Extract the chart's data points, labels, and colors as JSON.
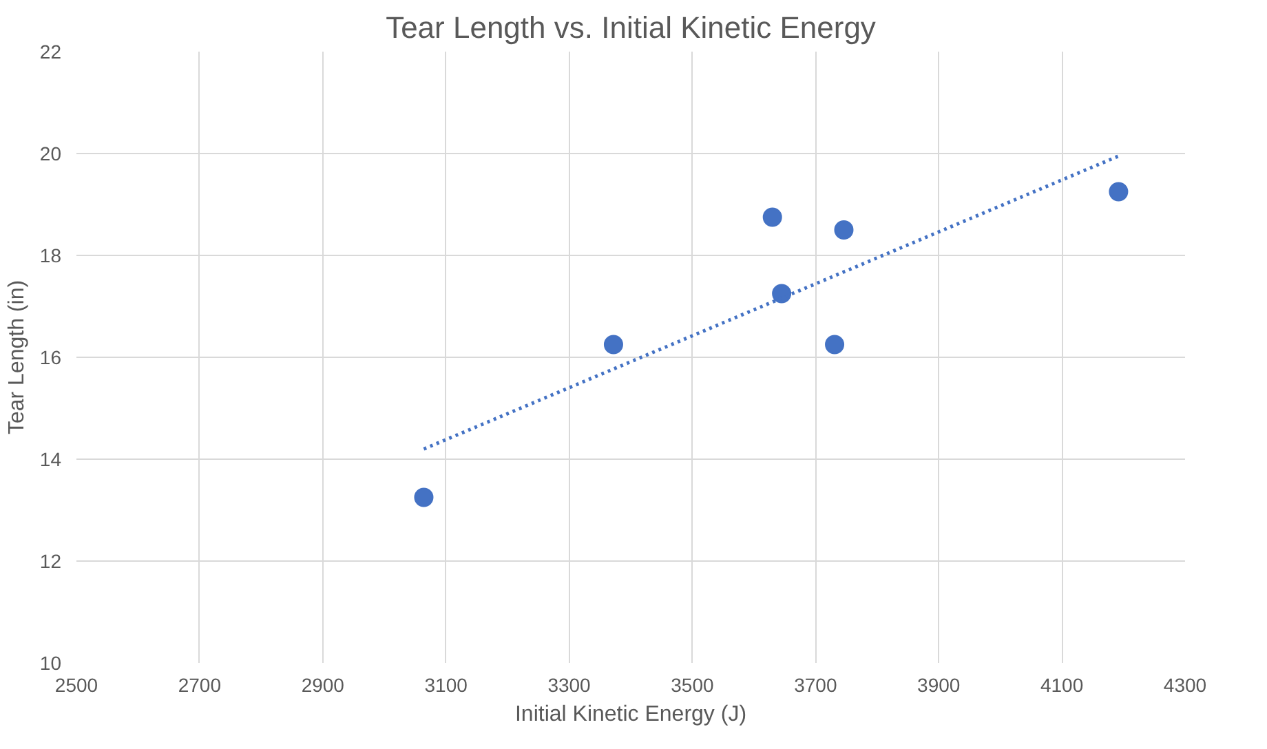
{
  "chart_data": {
    "type": "scatter",
    "title": "Tear Length vs. Initial Kinetic Energy",
    "xlabel": "Initial Kinetic Energy (J)",
    "ylabel": "Tear Length (in)",
    "series": [
      {
        "color": "#4472c4",
        "x": [
          3064,
          3372,
          3630,
          3645,
          3746,
          3731,
          4192
        ],
        "values": [
          13.25,
          16.25,
          18.75,
          17.25,
          18.5,
          16.25,
          19.25
        ],
        "marker": "circle"
      },
      {
        "type": "line",
        "color": "#4472c4",
        "x": [
          3064,
          4192
        ],
        "values": [
          14.2,
          19.95
        ],
        "line_style": "dotted",
        "marker": "none"
      }
    ],
    "xlim": [
      2500,
      4300
    ],
    "xticks": [
      2500,
      2700,
      2900,
      3100,
      3300,
      3500,
      3700,
      3900,
      4100,
      4300
    ],
    "ylim": [
      10,
      22
    ],
    "yticks": [
      10,
      12,
      14,
      16,
      18,
      20,
      22
    ],
    "grid": true
  }
}
